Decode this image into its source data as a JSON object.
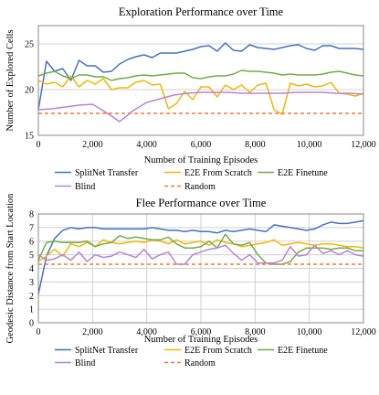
{
  "chart_data": [
    {
      "type": "line",
      "title": "Exploration Performance over Time",
      "xlabel": "Number of Training Episodes",
      "ylabel": "Number of Explored Cells",
      "xlim": [
        0,
        12000
      ],
      "ylim": [
        15,
        27
      ],
      "xticks": [
        0,
        2000,
        4000,
        6000,
        8000,
        10000,
        12000
      ],
      "xtick_labels": [
        "0",
        "2,000",
        "4,000",
        "6,000",
        "8,000",
        "10,000",
        "12,000"
      ],
      "yticks": [
        15,
        20,
        25
      ],
      "ytick_labels": [
        "15",
        "20",
        "25"
      ],
      "grid": "y",
      "legend_position": "bottom",
      "series": [
        {
          "name": "SplitNet Transfer",
          "color": "#4472C4",
          "dash": "",
          "x": [
            0,
            300,
            600,
            900,
            1200,
            1500,
            1800,
            2100,
            2400,
            2700,
            3000,
            3300,
            3600,
            3900,
            4200,
            4500,
            4800,
            5100,
            5400,
            5700,
            6000,
            6300,
            6600,
            6900,
            7200,
            7500,
            7800,
            8100,
            8400,
            8700,
            9000,
            9300,
            9600,
            9900,
            10200,
            10500,
            10800,
            11100,
            11400,
            11700,
            12000
          ],
          "y": [
            17.8,
            23.1,
            22.0,
            22.3,
            21.0,
            23.2,
            22.6,
            22.6,
            21.9,
            22.0,
            22.8,
            23.3,
            23.6,
            23.8,
            23.5,
            24.0,
            24.0,
            24.0,
            24.2,
            24.4,
            24.7,
            24.8,
            24.2,
            25.1,
            24.3,
            24.2,
            24.9,
            24.6,
            24.5,
            24.4,
            24.6,
            24.8,
            24.9,
            24.5,
            24.3,
            24.8,
            24.8,
            24.5,
            24.5,
            24.5,
            24.4
          ]
        },
        {
          "name": "E2E From Scratch",
          "color": "#F2B705",
          "dash": "",
          "x": [
            0,
            300,
            600,
            900,
            1200,
            1500,
            1800,
            2100,
            2400,
            2700,
            3000,
            3300,
            3600,
            3900,
            4200,
            4500,
            4800,
            5100,
            5400,
            5700,
            6000,
            6300,
            6600,
            6900,
            7200,
            7500,
            7800,
            8100,
            8400,
            8700,
            9000,
            9300,
            9600,
            9900,
            10200,
            10500,
            10800,
            11100,
            11400,
            11700,
            12000
          ],
          "y": [
            21.0,
            20.6,
            20.8,
            20.3,
            21.5,
            20.3,
            21.0,
            20.6,
            21.2,
            20.0,
            20.2,
            20.2,
            20.8,
            21.0,
            20.5,
            20.6,
            17.9,
            18.5,
            19.8,
            18.9,
            20.3,
            20.3,
            19.2,
            20.5,
            20.0,
            20.5,
            19.7,
            20.5,
            20.7,
            17.8,
            17.3,
            20.7,
            20.4,
            20.6,
            20.3,
            20.4,
            20.8,
            19.6,
            19.5,
            19.3,
            19.6
          ]
        },
        {
          "name": "E2E Finetune",
          "color": "#70AD47",
          "dash": "",
          "x": [
            0,
            300,
            600,
            900,
            1200,
            1500,
            1800,
            2100,
            2400,
            2700,
            3000,
            3300,
            3600,
            3900,
            4200,
            4500,
            4800,
            5100,
            5400,
            5700,
            6000,
            6300,
            6600,
            6900,
            7200,
            7500,
            7800,
            8100,
            8400,
            8700,
            9000,
            9300,
            9600,
            9900,
            10200,
            10500,
            10800,
            11100,
            11400,
            11700,
            12000
          ],
          "y": [
            21.5,
            21.8,
            22.0,
            21.5,
            21.2,
            21.6,
            21.6,
            21.4,
            21.4,
            21.0,
            21.2,
            21.3,
            21.5,
            21.6,
            21.5,
            21.6,
            21.7,
            21.8,
            21.8,
            21.3,
            21.2,
            21.4,
            21.5,
            21.5,
            21.7,
            22.1,
            22.0,
            22.0,
            21.9,
            21.8,
            21.6,
            21.7,
            21.6,
            21.6,
            21.6,
            21.7,
            21.9,
            22.0,
            21.8,
            21.6,
            21.5
          ]
        },
        {
          "name": "Blind",
          "color": "#B784D8",
          "dash": "",
          "x": [
            0,
            500,
            1000,
            1500,
            2000,
            2500,
            3000,
            3500,
            4000,
            4500,
            5000,
            5500,
            6000,
            6500,
            7000,
            7500,
            8000,
            8500,
            9000,
            9500,
            10000,
            10500,
            11000,
            11500,
            12000
          ],
          "y": [
            17.8,
            17.9,
            18.1,
            18.3,
            18.4,
            17.5,
            16.5,
            17.7,
            18.6,
            19.0,
            19.4,
            19.6,
            19.7,
            19.7,
            19.7,
            19.6,
            19.6,
            19.6,
            19.6,
            19.7,
            19.7,
            19.7,
            19.6,
            19.6,
            19.5
          ]
        },
        {
          "name": "Random",
          "color": "#ED7D31",
          "dash": "4,3",
          "x": [
            0,
            12000
          ],
          "y": [
            17.4,
            17.4
          ]
        }
      ]
    },
    {
      "type": "line",
      "title": "Flee Performance over Time",
      "xlabel": "Number of Training Episodes",
      "ylabel": "Geodesic Distance from Start Location",
      "xlim": [
        0,
        12000
      ],
      "ylim": [
        0,
        8
      ],
      "xticks": [
        0,
        2000,
        4000,
        6000,
        8000,
        10000,
        12000
      ],
      "xtick_labels": [
        "0",
        "2,000",
        "4,000",
        "6,000",
        "8,000",
        "10,000",
        "12,000"
      ],
      "yticks": [
        0,
        1,
        2,
        3,
        4,
        5,
        6,
        7,
        8
      ],
      "ytick_labels": [
        "0",
        "1",
        "2",
        "3",
        "4",
        "5",
        "6",
        "7",
        "8"
      ],
      "grid": "both",
      "legend_position": "bottom",
      "series": [
        {
          "name": "SplitNet Transfer",
          "color": "#4472C4",
          "dash": "",
          "x": [
            0,
            300,
            600,
            900,
            1200,
            1500,
            1800,
            2100,
            2400,
            2700,
            3000,
            3300,
            3600,
            3900,
            4200,
            4500,
            4800,
            5100,
            5400,
            5700,
            6000,
            6300,
            6600,
            6900,
            7200,
            7500,
            7800,
            8100,
            8400,
            8700,
            9000,
            9300,
            9600,
            9900,
            10200,
            10500,
            10800,
            11100,
            11400,
            11700,
            12000
          ],
          "y": [
            2.1,
            4.9,
            6.2,
            6.8,
            7.0,
            6.9,
            7.0,
            7.0,
            6.9,
            6.9,
            6.9,
            6.9,
            6.9,
            6.9,
            7.0,
            6.9,
            6.8,
            6.8,
            6.7,
            6.8,
            6.7,
            6.7,
            6.6,
            6.8,
            6.7,
            6.8,
            6.9,
            6.8,
            6.7,
            7.2,
            7.1,
            7.0,
            6.9,
            6.8,
            6.9,
            7.2,
            7.4,
            7.3,
            7.3,
            7.4,
            7.5
          ]
        },
        {
          "name": "E2E From Scratch",
          "color": "#F2B705",
          "dash": "",
          "x": [
            0,
            300,
            600,
            900,
            1200,
            1500,
            1800,
            2100,
            2400,
            2700,
            3000,
            3300,
            3600,
            3900,
            4200,
            4500,
            4800,
            5100,
            5400,
            5700,
            6000,
            6300,
            6600,
            6900,
            7200,
            7500,
            7800,
            8100,
            8400,
            8700,
            9000,
            9300,
            9600,
            9900,
            10200,
            10500,
            10800,
            11100,
            11400,
            11700,
            12000
          ],
          "y": [
            4.5,
            4.9,
            5.4,
            4.9,
            5.8,
            5.6,
            5.9,
            5.6,
            6.1,
            5.9,
            5.8,
            5.9,
            6.0,
            5.9,
            6.1,
            6.0,
            5.8,
            6.1,
            5.8,
            5.9,
            6.0,
            5.7,
            6.1,
            5.9,
            5.8,
            5.6,
            5.7,
            5.8,
            5.9,
            6.1,
            5.7,
            5.8,
            5.9,
            5.8,
            5.7,
            5.8,
            5.8,
            5.7,
            5.6,
            5.6,
            5.5
          ]
        },
        {
          "name": "E2E Finetune",
          "color": "#70AD47",
          "dash": "",
          "x": [
            0,
            300,
            600,
            900,
            1200,
            1500,
            1800,
            2100,
            2400,
            2700,
            3000,
            3300,
            3600,
            3900,
            4200,
            4500,
            4800,
            5100,
            5400,
            5700,
            6000,
            6300,
            6600,
            6900,
            7200,
            7500,
            7800,
            8100,
            8400,
            8700,
            9000,
            9300,
            9600,
            9900,
            10200,
            10500,
            10800,
            11100,
            11400,
            11700,
            12000
          ],
          "y": [
            4.6,
            5.9,
            6.0,
            5.9,
            5.9,
            5.9,
            6.0,
            5.6,
            5.8,
            5.9,
            6.4,
            6.2,
            6.3,
            6.2,
            6.1,
            6.1,
            6.3,
            5.8,
            5.5,
            5.5,
            5.6,
            6.0,
            5.5,
            6.5,
            5.8,
            5.7,
            5.9,
            5.0,
            4.4,
            4.3,
            4.3,
            4.5,
            5.2,
            5.5,
            5.5,
            5.5,
            5.4,
            5.5,
            5.5,
            5.3,
            5.3
          ]
        },
        {
          "name": "Blind",
          "color": "#B784D8",
          "dash": "",
          "x": [
            0,
            300,
            600,
            900,
            1200,
            1500,
            1800,
            2100,
            2400,
            2700,
            3000,
            3300,
            3600,
            3900,
            4200,
            4500,
            4800,
            5100,
            5400,
            5700,
            6000,
            6300,
            6600,
            6900,
            7200,
            7500,
            7800,
            8100,
            8400,
            8700,
            9000,
            9300,
            9600,
            9900,
            10200,
            10500,
            10800,
            11100,
            11400,
            11700,
            12000
          ],
          "y": [
            5.0,
            4.6,
            4.7,
            5.0,
            4.6,
            5.2,
            4.5,
            5.0,
            4.8,
            4.9,
            5.2,
            5.0,
            4.8,
            5.4,
            4.7,
            5.0,
            5.2,
            4.3,
            4.3,
            5.0,
            5.2,
            5.4,
            5.5,
            5.7,
            5.1,
            4.6,
            5.0,
            4.4,
            4.4,
            4.4,
            4.6,
            5.6,
            4.9,
            5.0,
            5.7,
            5.1,
            5.3,
            5.0,
            5.3,
            5.0,
            4.9
          ]
        },
        {
          "name": "Random",
          "color": "#ED7D31",
          "dash": "4,3",
          "x": [
            0,
            12000
          ],
          "y": [
            4.3,
            4.3
          ]
        }
      ]
    }
  ]
}
